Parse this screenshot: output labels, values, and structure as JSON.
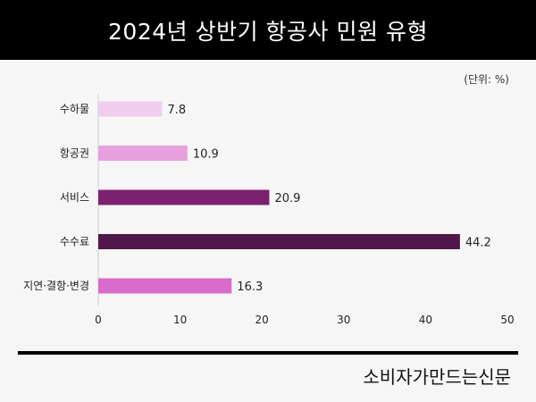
{
  "title": "2024년 상반기 항공사 민원 유형",
  "unit_note": "(단위: %)",
  "source": "소비자가만드는신문",
  "chart_data": {
    "type": "bar",
    "orientation": "horizontal",
    "title": "2024년 상반기 항공사 민원 유형",
    "categories": [
      "수하물",
      "항공권",
      "서비스",
      "수수료",
      "지연·결항·변경"
    ],
    "values": [
      7.8,
      10.9,
      20.9,
      44.2,
      16.3
    ],
    "colors": [
      "#f0cdef",
      "#e6a0dc",
      "#7d2070",
      "#52174a",
      "#d96bcc"
    ],
    "xlim": [
      0,
      50
    ],
    "xticks": [
      0,
      10,
      20,
      30,
      40,
      50
    ],
    "grid": false
  }
}
